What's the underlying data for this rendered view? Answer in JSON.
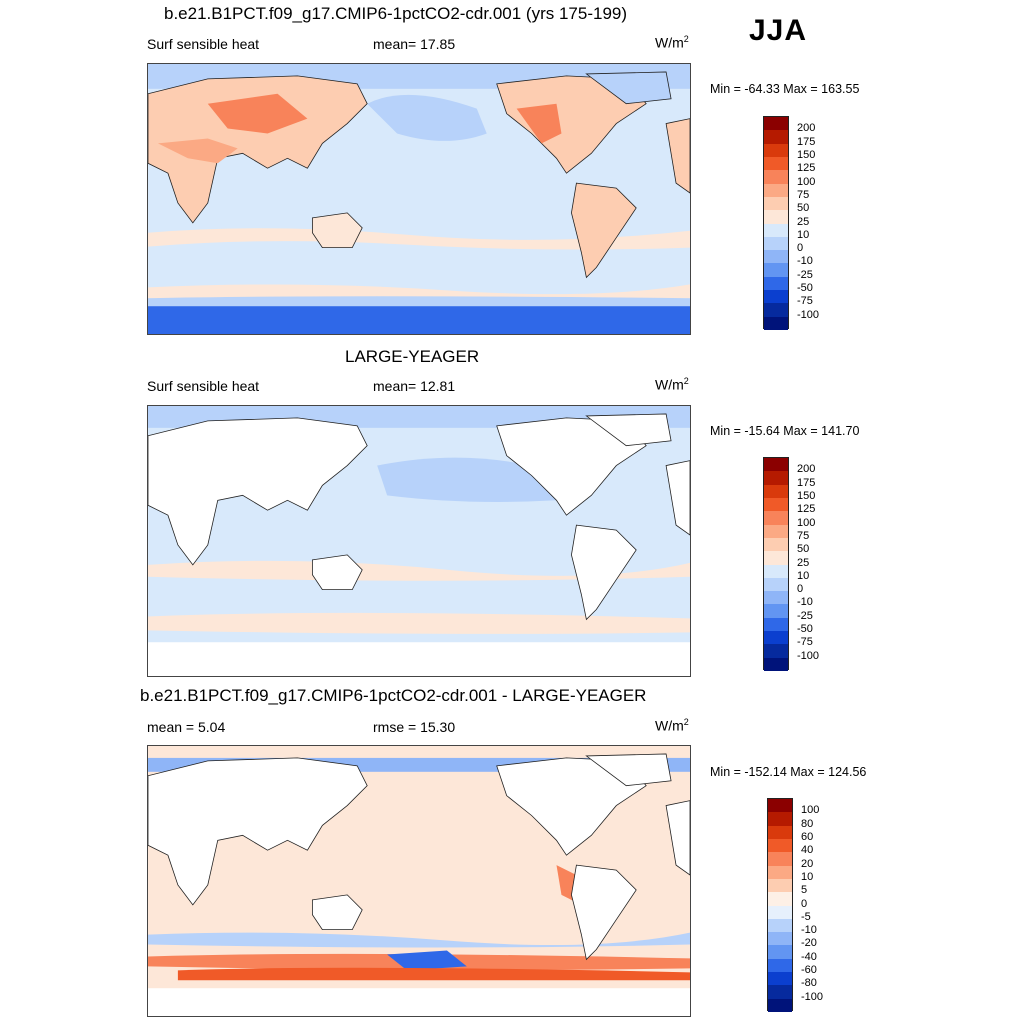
{
  "season": "JJA",
  "panels": [
    {
      "title": "b.e21.B1PCT.f09_g17.CMIP6-1pctCO2-cdr.001 (yrs 175-199)",
      "left_label": "Surf sensible heat",
      "center_label": "mean=  17.85",
      "units": "W/m",
      "units_sup": "2",
      "minmax": "Min = -64.33 Max = 163.55",
      "colorbar": {
        "labels": [
          "200",
          "175",
          "150",
          "125",
          "100",
          "75",
          "50",
          "25",
          "10",
          "0",
          "-10",
          "-25",
          "-50",
          "-75",
          "-100"
        ],
        "colors": [
          "#8b0000",
          "#b51a00",
          "#d93a0c",
          "#f05a28",
          "#f8835a",
          "#fba984",
          "#fdcdb1",
          "#fde7d8",
          "#d8e9fb",
          "#b7d2fa",
          "#8fb5f7",
          "#6295f2",
          "#2f68e8",
          "#0b3fcf",
          "#062a9e",
          "#00137a"
        ]
      }
    },
    {
      "title": "LARGE-YEAGER",
      "left_label": "Surf sensible heat",
      "center_label": "mean=  12.81",
      "units": "W/m",
      "units_sup": "2",
      "minmax": "Min = -15.64 Max = 141.70",
      "colorbar": {
        "labels": [
          "200",
          "175",
          "150",
          "125",
          "100",
          "75",
          "50",
          "25",
          "10",
          "0",
          "-10",
          "-25",
          "-50",
          "-75",
          "-100"
        ],
        "colors": [
          "#8b0000",
          "#b51a00",
          "#d93a0c",
          "#f05a28",
          "#f8835a",
          "#fba984",
          "#fdcdb1",
          "#fde7d8",
          "#d8e9fb",
          "#b7d2fa",
          "#8fb5f7",
          "#6295f2",
          "#2f68e8",
          "#0b3fcf",
          "#062a9e",
          "#00137a"
        ]
      }
    },
    {
      "title": "b.e21.B1PCT.f09_g17.CMIP6-1pctCO2-cdr.001 - LARGE-YEAGER",
      "left_label": "mean =   5.04",
      "center_label": "rmse =  15.30",
      "units": "W/m",
      "units_sup": "2",
      "minmax": "Min = -152.14 Max = 124.56",
      "colorbar": {
        "labels": [
          "100",
          "80",
          "60",
          "40",
          "20",
          "10",
          "5",
          "0",
          "-5",
          "-10",
          "-20",
          "-40",
          "-60",
          "-80",
          "-100"
        ],
        "colors": [
          "#8b0000",
          "#b51a00",
          "#d93a0c",
          "#f05a28",
          "#f8835a",
          "#fba984",
          "#fdcdb1",
          "#fdf0e6",
          "#e6f0fc",
          "#b7d2fa",
          "#8fb5f7",
          "#6295f2",
          "#2f68e8",
          "#0b3fcf",
          "#062a9e",
          "#00137a"
        ]
      }
    }
  ]
}
